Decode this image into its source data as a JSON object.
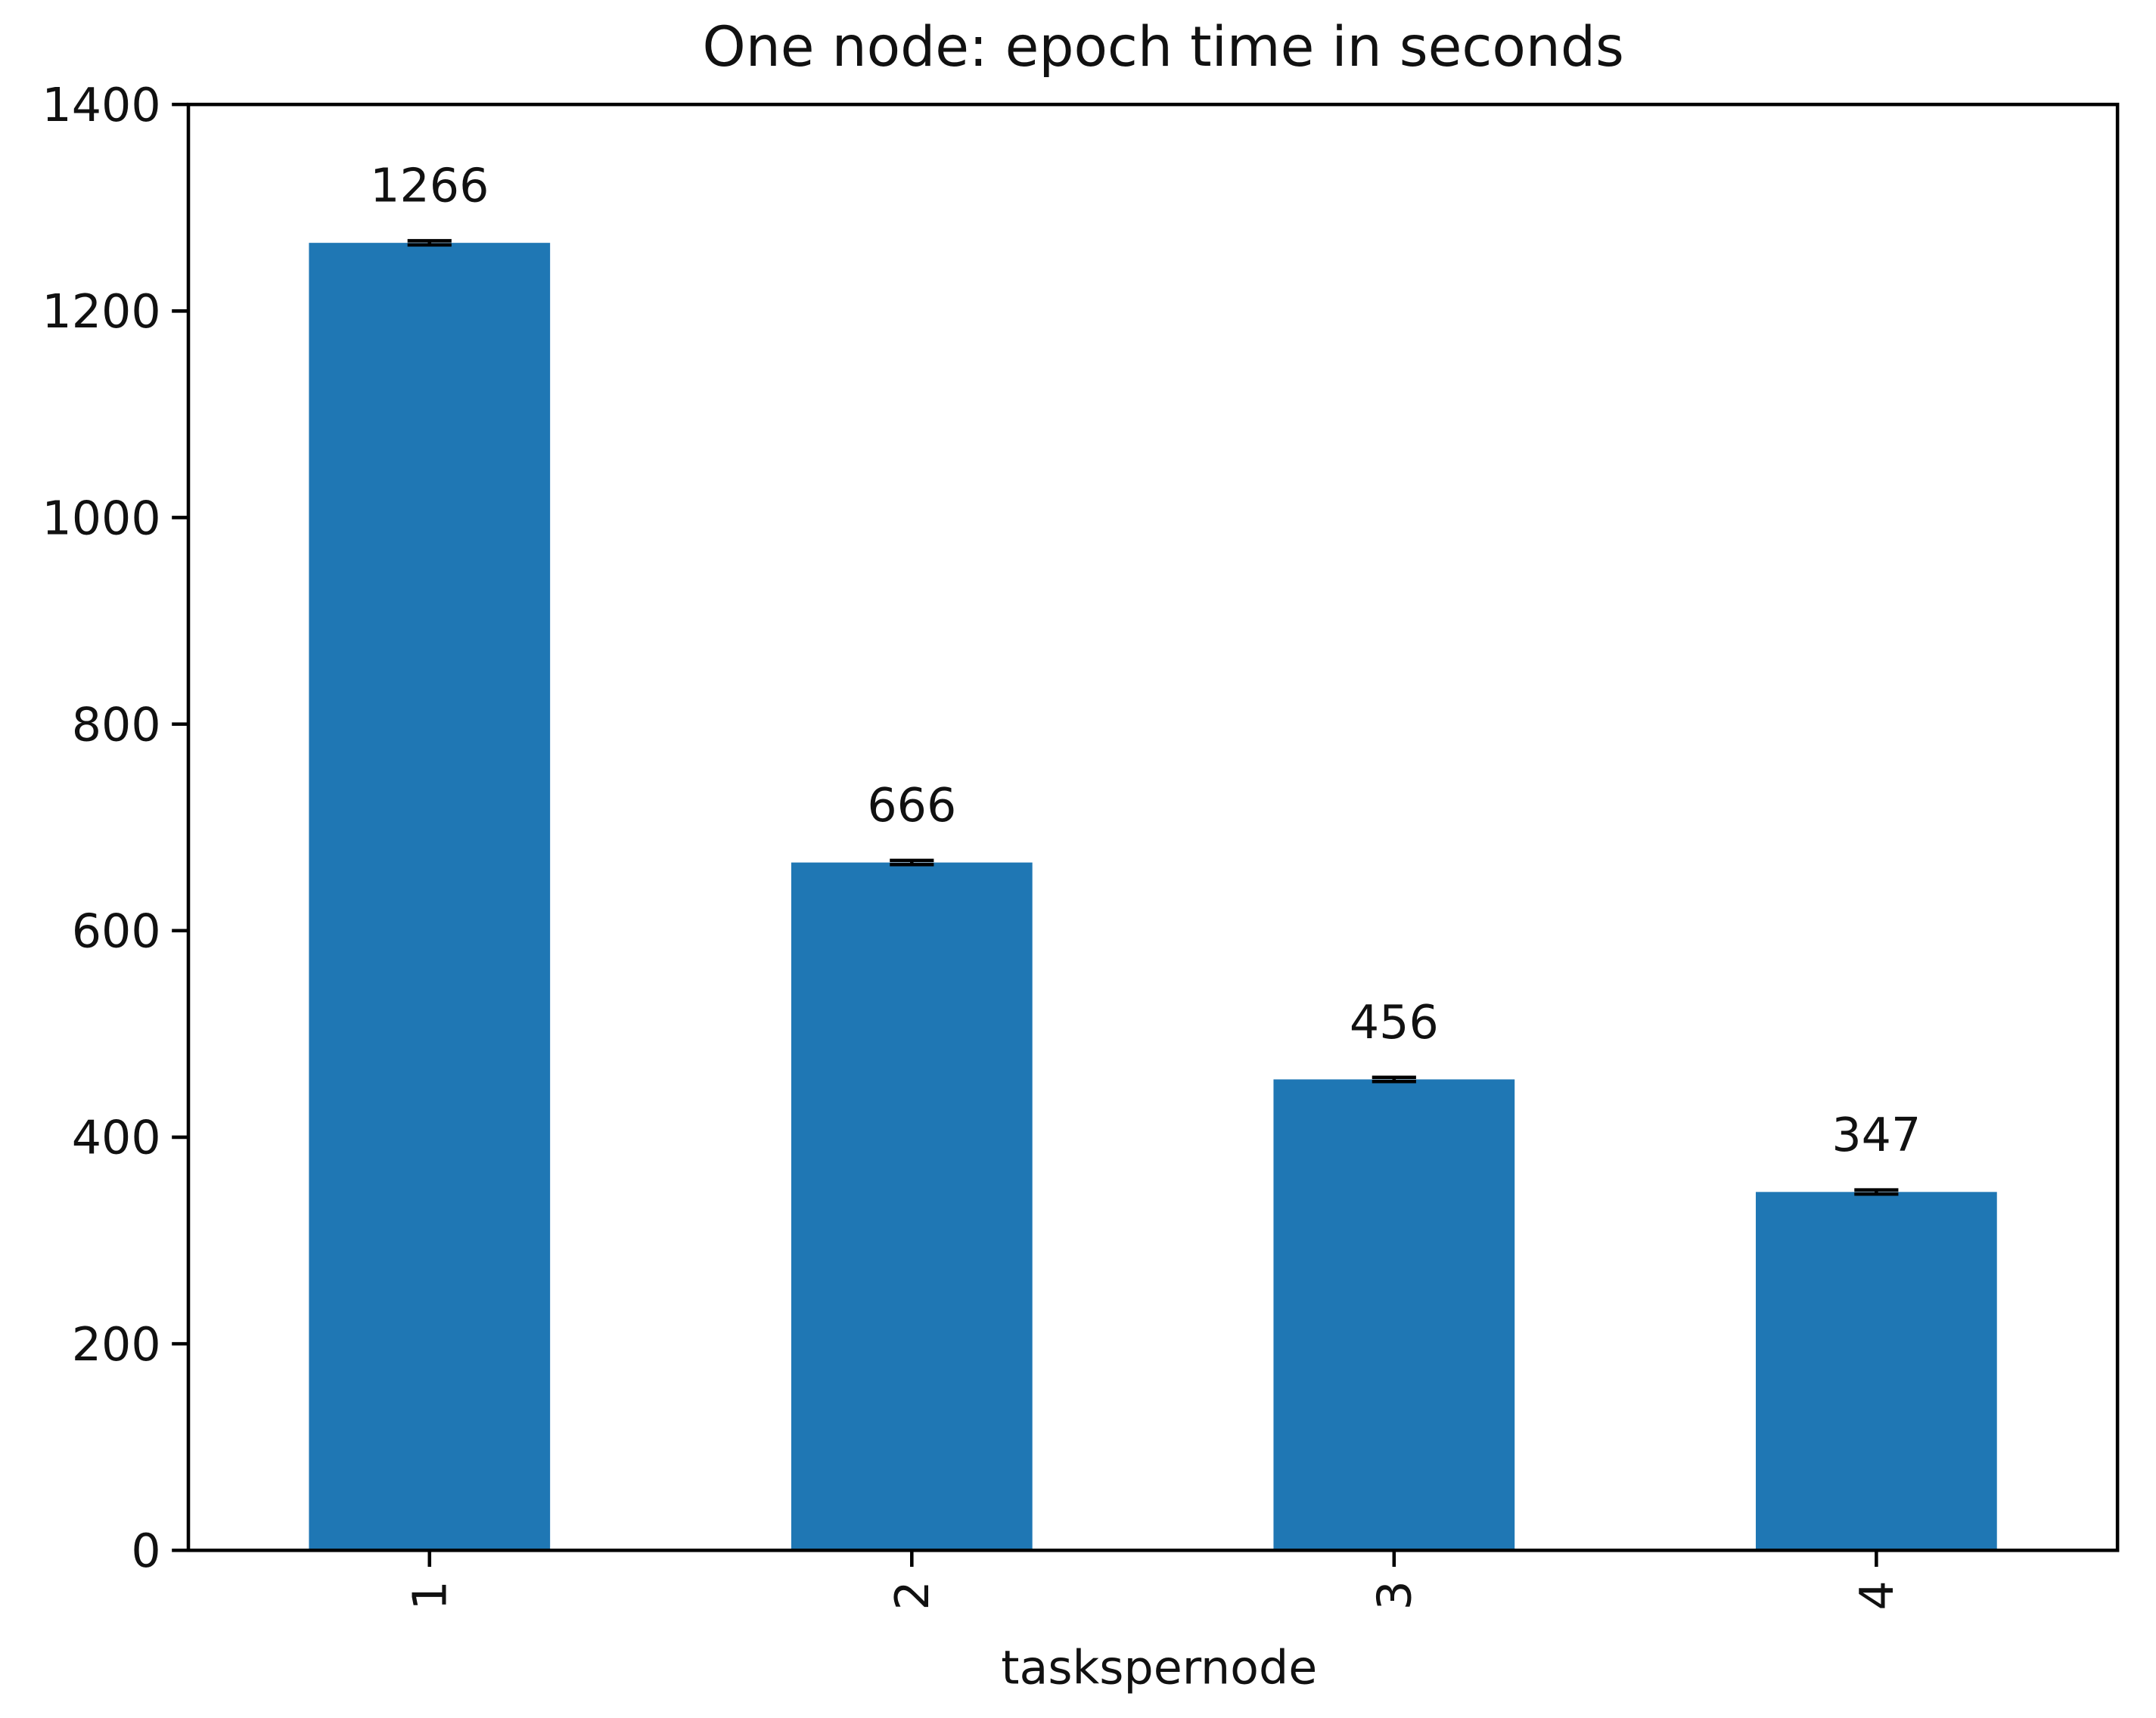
{
  "chart_data": {
    "type": "bar",
    "title": "One node: epoch time in seconds",
    "x_label": "taskspernode",
    "categories": [
      "1",
      "2",
      "3",
      "4"
    ],
    "values": [
      1266,
      666,
      456,
      347
    ],
    "errors": [
      2,
      2,
      2,
      2
    ],
    "color": "#1f77b4",
    "ylim": [
      0,
      1400
    ],
    "yticks": [
      0,
      200,
      400,
      600,
      800,
      1000,
      1200,
      1400
    ]
  }
}
